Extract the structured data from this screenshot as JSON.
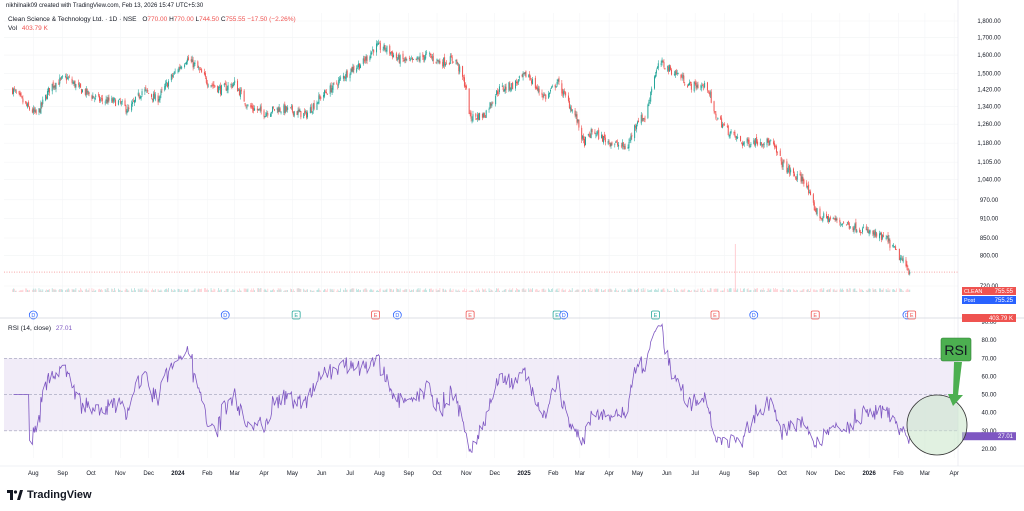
{
  "header": {
    "creator_line": "nikhilnaik09 created with TradingView.com, Feb 13, 2026 15:47 UTC+5:30",
    "symbol_name": "Clean Science & Technology Ltd. · 1D · NSE",
    "ohlc": {
      "o_label": "O",
      "o": "770.00",
      "h_label": "H",
      "h": "770.00",
      "l_label": "L",
      "l": "744.50",
      "c_label": "C",
      "c": "755.55",
      "change": "−17.50 (−2.26%)"
    },
    "vol_label": "Vol",
    "vol_value": "403.79 K"
  },
  "rsi_header": {
    "label": "RSI (14, close)",
    "value": "27.01"
  },
  "annotation": {
    "text": "RSI"
  },
  "badges": {
    "symbol_tag": "CLEAN",
    "price": "755.55",
    "post_tag": "Post",
    "post_price": "755.25",
    "volume": "403.79 K",
    "rsi": "27.01"
  },
  "events": [
    {
      "letter": "D",
      "type": "dividend"
    },
    {
      "letter": "D",
      "type": "dividend"
    },
    {
      "letter": "E",
      "type": "earnings-beat"
    },
    {
      "letter": "E",
      "type": "earnings-miss"
    },
    {
      "letter": "D",
      "type": "dividend"
    },
    {
      "letter": "E",
      "type": "earnings-miss"
    },
    {
      "letter": "E",
      "type": "earnings-beat"
    },
    {
      "letter": "D",
      "type": "dividend"
    },
    {
      "letter": "E",
      "type": "earnings-beat"
    },
    {
      "letter": "E",
      "type": "earnings-miss"
    },
    {
      "letter": "D",
      "type": "dividend"
    },
    {
      "letter": "E",
      "type": "earnings-miss"
    },
    {
      "letter": "D",
      "type": "dividend"
    },
    {
      "letter": "E",
      "type": "earnings-miss"
    }
  ],
  "colors": {
    "up": "#26a69a",
    "down": "#ef5350",
    "rsi_line": "#7e57c2",
    "rsi_band": "#ede7f6",
    "annotation_fill": "#4caf50"
  },
  "brand": {
    "name": "TradingView"
  },
  "chart_data": {
    "type": "candlestick",
    "price_axis": {
      "ticks": [
        1800,
        1700,
        1600,
        1500,
        1420,
        1340,
        1260,
        1180,
        1105,
        1040,
        970,
        910,
        850,
        800,
        720
      ],
      "labels": [
        "1,800.00",
        "1,700.00",
        "1,600.00",
        "1,500.00",
        "1,420.00",
        "1,340.00",
        "1,260.00",
        "1,180.00",
        "1,105.00",
        "1,040.00",
        "970.00",
        "910.00",
        "850.00",
        "800.00",
        "720.00"
      ],
      "scale": "log"
    },
    "rsi_axis": {
      "ticks": [
        90,
        80,
        70,
        60,
        50,
        40,
        30,
        20
      ],
      "labels": [
        "90.00",
        "80.00",
        "70.00",
        "60.00",
        "50.00",
        "40.00",
        "30.00",
        "20.00"
      ],
      "ylim": [
        15,
        90
      ],
      "band": [
        30,
        70
      ],
      "midline": 50
    },
    "x_axis": {
      "labels": [
        "Aug",
        "Sep",
        "Oct",
        "Nov",
        "Dec",
        "2024",
        "Feb",
        "Mar",
        "Apr",
        "May",
        "Jun",
        "Jul",
        "Aug",
        "Sep",
        "Oct",
        "Nov",
        "Dec",
        "2025",
        "Feb",
        "Mar",
        "Apr",
        "May",
        "Jun",
        "Jul",
        "Aug",
        "Sep",
        "Oct",
        "Nov",
        "Dec",
        "2026",
        "Feb",
        "Mar",
        "Apr"
      ],
      "bold": [
        "2024",
        "2025",
        "2026"
      ]
    },
    "close_anchors": [
      [
        "2023-07-10",
        1420
      ],
      [
        "2023-07-25",
        1340
      ],
      [
        "2023-08-05",
        1300
      ],
      [
        "2023-08-20",
        1440
      ],
      [
        "2023-09-05",
        1480
      ],
      [
        "2023-09-20",
        1420
      ],
      [
        "2023-10-10",
        1370
      ],
      [
        "2023-10-30",
        1360
      ],
      [
        "2023-11-10",
        1320
      ],
      [
        "2023-11-25",
        1420
      ],
      [
        "2023-12-10",
        1370
      ],
      [
        "2023-12-25",
        1480
      ],
      [
        "2024-01-10",
        1580
      ],
      [
        "2024-01-20",
        1540
      ],
      [
        "2024-02-01",
        1460
      ],
      [
        "2024-02-15",
        1420
      ],
      [
        "2024-03-01",
        1450
      ],
      [
        "2024-03-15",
        1340
      ],
      [
        "2024-04-01",
        1310
      ],
      [
        "2024-04-15",
        1330
      ],
      [
        "2024-05-01",
        1320
      ],
      [
        "2024-05-15",
        1300
      ],
      [
        "2024-06-01",
        1390
      ],
      [
        "2024-06-15",
        1440
      ],
      [
        "2024-07-01",
        1520
      ],
      [
        "2024-07-15",
        1560
      ],
      [
        "2024-07-28",
        1650
      ],
      [
        "2024-08-10",
        1630
      ],
      [
        "2024-08-20",
        1580
      ],
      [
        "2024-09-05",
        1560
      ],
      [
        "2024-09-20",
        1600
      ],
      [
        "2024-10-05",
        1560
      ],
      [
        "2024-10-20",
        1580
      ],
      [
        "2024-10-31",
        1440
      ],
      [
        "2024-11-05",
        1290
      ],
      [
        "2024-11-20",
        1300
      ],
      [
        "2024-12-05",
        1420
      ],
      [
        "2024-12-20",
        1440
      ],
      [
        "2025-01-05",
        1500
      ],
      [
        "2025-01-15",
        1420
      ],
      [
        "2025-01-25",
        1380
      ],
      [
        "2025-02-05",
        1460
      ],
      [
        "2025-02-12",
        1400
      ],
      [
        "2025-02-25",
        1290
      ],
      [
        "2025-03-05",
        1180
      ],
      [
        "2025-03-15",
        1230
      ],
      [
        "2025-03-25",
        1200
      ],
      [
        "2025-04-05",
        1180
      ],
      [
        "2025-04-20",
        1160
      ],
      [
        "2025-05-01",
        1280
      ],
      [
        "2025-05-10",
        1290
      ],
      [
        "2025-05-18",
        1480
      ],
      [
        "2025-05-25",
        1560
      ],
      [
        "2025-06-05",
        1520
      ],
      [
        "2025-06-15",
        1490
      ],
      [
        "2025-06-25",
        1440
      ],
      [
        "2025-07-05",
        1440
      ],
      [
        "2025-07-15",
        1430
      ],
      [
        "2025-07-20",
        1310
      ],
      [
        "2025-08-05",
        1230
      ],
      [
        "2025-08-20",
        1180
      ],
      [
        "2025-09-05",
        1190
      ],
      [
        "2025-09-20",
        1180
      ],
      [
        "2025-10-01",
        1100
      ],
      [
        "2025-10-15",
        1050
      ],
      [
        "2025-10-25",
        1040
      ],
      [
        "2025-11-01",
        960
      ],
      [
        "2025-11-10",
        915
      ],
      [
        "2025-11-25",
        905
      ],
      [
        "2025-12-10",
        890
      ],
      [
        "2025-12-25",
        875
      ],
      [
        "2026-01-10",
        855
      ],
      [
        "2026-01-20",
        845
      ],
      [
        "2026-02-01",
        800
      ],
      [
        "2026-02-13",
        755.55
      ]
    ],
    "last_close": 755.55,
    "last_rsi": 27.01
  }
}
